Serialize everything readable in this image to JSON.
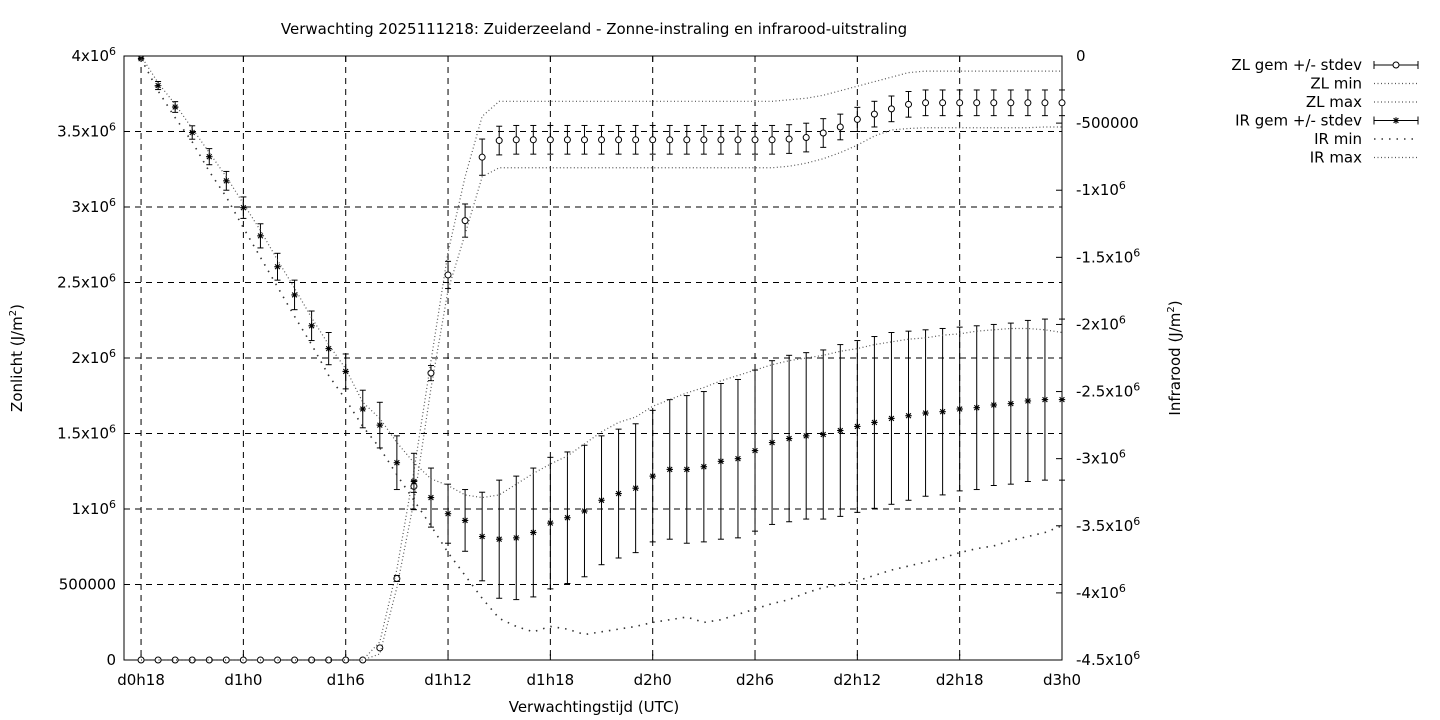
{
  "chart_data": {
    "type": "line",
    "title": "Verwachting 2025111218: Zuiderzeeland - Zonne-instraling en infrarood-uitstraling",
    "xlabel": "Verwachtingstijd (UTC)",
    "ylabel": "Zonlicht (J/m",
    "ylabel_sup": "2",
    "ylabel_end": ")",
    "y2label": "Infrarood (J/m",
    "y2label_sup": "2",
    "y2label_end": ")",
    "grid": true,
    "legend_position": "outside-right",
    "xlim": [
      -1,
      54
    ],
    "ylim": [
      0,
      4000000
    ],
    "y2lim": [
      -4500000,
      0
    ],
    "x": [
      0,
      1,
      2,
      3,
      4,
      5,
      6,
      7,
      8,
      9,
      10,
      11,
      12,
      13,
      14,
      15,
      16,
      17,
      18,
      19,
      20,
      21,
      22,
      23,
      24,
      25,
      26,
      27,
      28,
      29,
      30,
      31,
      32,
      33,
      34,
      35,
      36,
      37,
      38,
      39,
      40,
      41,
      42,
      43,
      44,
      45,
      46,
      47,
      48,
      49,
      50,
      51,
      52,
      53,
      54
    ],
    "x_ticks": [
      {
        "value": 0,
        "label": "d0h18"
      },
      {
        "value": 6,
        "label": "d1h0"
      },
      {
        "value": 12,
        "label": "d1h6"
      },
      {
        "value": 18,
        "label": "d1h12"
      },
      {
        "value": 24,
        "label": "d1h18"
      },
      {
        "value": 30,
        "label": "d2h0"
      },
      {
        "value": 36,
        "label": "d2h6"
      },
      {
        "value": 42,
        "label": "d2h12"
      },
      {
        "value": 48,
        "label": "d2h18"
      },
      {
        "value": 54,
        "label": "d3h0"
      }
    ],
    "y_ticks": [
      {
        "value": 0,
        "label": "0",
        "exp": ""
      },
      {
        "value": 500000,
        "label": "500000",
        "exp": ""
      },
      {
        "value": 1000000,
        "label": "1x10",
        "exp": "6"
      },
      {
        "value": 1500000,
        "label": "1.5x10",
        "exp": "6"
      },
      {
        "value": 2000000,
        "label": "2x10",
        "exp": "6"
      },
      {
        "value": 2500000,
        "label": "2.5x10",
        "exp": "6"
      },
      {
        "value": 3000000,
        "label": "3x10",
        "exp": "6"
      },
      {
        "value": 3500000,
        "label": "3.5x10",
        "exp": "6"
      },
      {
        "value": 4000000,
        "label": "4x10",
        "exp": "6"
      }
    ],
    "y2_ticks": [
      {
        "value": 0,
        "label": "0",
        "exp": ""
      },
      {
        "value": -500000,
        "label": "-500000",
        "exp": ""
      },
      {
        "value": -1000000,
        "label": "-1x10",
        "exp": "6"
      },
      {
        "value": -1500000,
        "label": "-1.5x10",
        "exp": "6"
      },
      {
        "value": -2000000,
        "label": "-2x10",
        "exp": "6"
      },
      {
        "value": -2500000,
        "label": "-2.5x10",
        "exp": "6"
      },
      {
        "value": -3000000,
        "label": "-3x10",
        "exp": "6"
      },
      {
        "value": -3500000,
        "label": "-3.5x10",
        "exp": "6"
      },
      {
        "value": -4000000,
        "label": "-4x10",
        "exp": "6"
      },
      {
        "value": -4500000,
        "label": "-4.5x10",
        "exp": "6"
      }
    ],
    "series": [
      {
        "name": "ZL gem +/- stdev",
        "axis": "y1",
        "style": "errorbars-circle",
        "values": [
          0,
          0,
          0,
          0,
          0,
          0,
          0,
          0,
          0,
          0,
          0,
          0,
          0,
          0,
          80000,
          540000,
          1150000,
          1900000,
          2550000,
          2910000,
          3330000,
          3440000,
          3445000,
          3445000,
          3445000,
          3445000,
          3445000,
          3445000,
          3445000,
          3445000,
          3445000,
          3445000,
          3445000,
          3445000,
          3445000,
          3445000,
          3445000,
          3445000,
          3450000,
          3460000,
          3490000,
          3530000,
          3580000,
          3615000,
          3650000,
          3680000,
          3690000,
          3690000,
          3690000,
          3690000,
          3690000,
          3690000,
          3690000,
          3690000,
          3690000
        ],
        "stdev": [
          0,
          0,
          0,
          0,
          0,
          0,
          0,
          0,
          0,
          0,
          0,
          0,
          0,
          0,
          10000,
          20000,
          40000,
          50000,
          90000,
          110000,
          120000,
          95000,
          95000,
          95000,
          95000,
          95000,
          95000,
          95000,
          95000,
          95000,
          95000,
          95000,
          95000,
          95000,
          95000,
          95000,
          95000,
          95000,
          95000,
          95000,
          95000,
          85000,
          80000,
          85000,
          85000,
          85000,
          85000,
          85000,
          85000,
          85000,
          85000,
          85000,
          85000,
          85000,
          85000
        ]
      },
      {
        "name": "ZL min",
        "axis": "y1",
        "style": "dotted",
        "values": [
          0,
          0,
          0,
          0,
          0,
          0,
          0,
          0,
          0,
          0,
          0,
          0,
          0,
          0,
          40000,
          480000,
          1050000,
          1800000,
          2450000,
          2820000,
          3200000,
          3260000,
          3260000,
          3260000,
          3260000,
          3260000,
          3260000,
          3260000,
          3260000,
          3260000,
          3260000,
          3260000,
          3260000,
          3260000,
          3260000,
          3260000,
          3260000,
          3260000,
          3270000,
          3290000,
          3320000,
          3360000,
          3410000,
          3470000,
          3510000,
          3520000,
          3525000,
          3525000,
          3525000,
          3525000,
          3525000,
          3525000,
          3525000,
          3530000,
          3530000
        ]
      },
      {
        "name": "ZL max",
        "axis": "y1",
        "style": "dotted",
        "values": [
          0,
          0,
          0,
          0,
          0,
          0,
          0,
          0,
          0,
          0,
          0,
          0,
          0,
          0,
          120000,
          600000,
          1250000,
          1980000,
          2700000,
          3200000,
          3600000,
          3700000,
          3700000,
          3700000,
          3700000,
          3700000,
          3700000,
          3700000,
          3700000,
          3700000,
          3700000,
          3700000,
          3700000,
          3700000,
          3700000,
          3700000,
          3700000,
          3700000,
          3710000,
          3720000,
          3740000,
          3770000,
          3800000,
          3830000,
          3860000,
          3890000,
          3900000,
          3900000,
          3900000,
          3900000,
          3900000,
          3900000,
          3900000,
          3900000,
          3900000
        ]
      },
      {
        "name": "IR gem +/- stdev",
        "axis": "y2",
        "style": "errorbars-star",
        "values": [
          -20000,
          -220000,
          -380000,
          -570000,
          -750000,
          -930000,
          -1130000,
          -1340000,
          -1570000,
          -1780000,
          -2010000,
          -2180000,
          -2350000,
          -2630000,
          -2750000,
          -3030000,
          -3170000,
          -3290000,
          -3410000,
          -3460000,
          -3580000,
          -3600000,
          -3590000,
          -3550000,
          -3480000,
          -3440000,
          -3390000,
          -3310000,
          -3260000,
          -3220000,
          -3130000,
          -3080000,
          -3080000,
          -3060000,
          -3020000,
          -3000000,
          -2940000,
          -2880000,
          -2850000,
          -2830000,
          -2820000,
          -2790000,
          -2760000,
          -2730000,
          -2700000,
          -2680000,
          -2660000,
          -2650000,
          -2630000,
          -2620000,
          -2600000,
          -2590000,
          -2570000,
          -2560000,
          -2560000
        ],
        "stdev": [
          5000,
          30000,
          40000,
          50000,
          60000,
          70000,
          80000,
          90000,
          100000,
          110000,
          110000,
          120000,
          130000,
          140000,
          170000,
          200000,
          210000,
          220000,
          220000,
          230000,
          330000,
          440000,
          460000,
          480000,
          490000,
          490000,
          490000,
          480000,
          480000,
          480000,
          490000,
          520000,
          550000,
          560000,
          580000,
          590000,
          600000,
          610000,
          620000,
          620000,
          630000,
          640000,
          640000,
          640000,
          640000,
          630000,
          620000,
          620000,
          610000,
          610000,
          600000,
          600000,
          600000,
          600000,
          600000
        ]
      },
      {
        "name": "IR min",
        "axis": "y2",
        "style": "dotted-sparse",
        "values": [
          -20000,
          -260000,
          -460000,
          -640000,
          -860000,
          -1050000,
          -1280000,
          -1500000,
          -1720000,
          -1940000,
          -2150000,
          -2380000,
          -2560000,
          -2760000,
          -2920000,
          -3120000,
          -3310000,
          -3500000,
          -3700000,
          -3870000,
          -4040000,
          -4190000,
          -4250000,
          -4290000,
          -4250000,
          -4270000,
          -4310000,
          -4290000,
          -4270000,
          -4250000,
          -4220000,
          -4200000,
          -4180000,
          -4220000,
          -4200000,
          -4160000,
          -4120000,
          -4080000,
          -4050000,
          -4000000,
          -3960000,
          -3940000,
          -3910000,
          -3870000,
          -3830000,
          -3800000,
          -3770000,
          -3740000,
          -3700000,
          -3670000,
          -3650000,
          -3610000,
          -3580000,
          -3550000,
          -3500000
        ]
      },
      {
        "name": "IR max",
        "axis": "y2",
        "style": "dotted",
        "values": [
          0,
          -200000,
          -360000,
          -540000,
          -720000,
          -900000,
          -1100000,
          -1300000,
          -1520000,
          -1730000,
          -1950000,
          -2150000,
          -2330000,
          -2580000,
          -2700000,
          -2880000,
          -3030000,
          -3150000,
          -3200000,
          -3270000,
          -3290000,
          -3270000,
          -3190000,
          -3110000,
          -3040000,
          -2980000,
          -2890000,
          -2800000,
          -2730000,
          -2690000,
          -2610000,
          -2560000,
          -2510000,
          -2470000,
          -2420000,
          -2380000,
          -2340000,
          -2300000,
          -2270000,
          -2250000,
          -2230000,
          -2200000,
          -2180000,
          -2150000,
          -2130000,
          -2110000,
          -2100000,
          -2080000,
          -2070000,
          -2050000,
          -2040000,
          -2030000,
          -2030000,
          -2040000,
          -2060000
        ]
      }
    ]
  }
}
